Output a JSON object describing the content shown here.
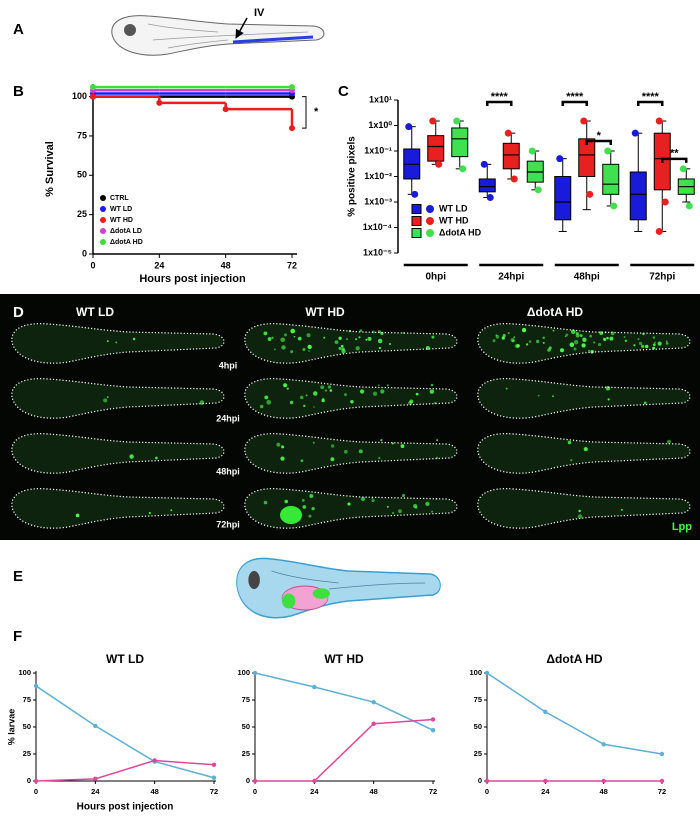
{
  "panel_labels": [
    "A",
    "B",
    "C",
    "D",
    "E",
    "F"
  ],
  "panel_a": {
    "annotation": "IV"
  },
  "imaging": {
    "columns": [
      "WT LD",
      "WT HD",
      "ΔdotA HD"
    ],
    "rows": [
      "4hpi",
      "24hpi",
      "48hpi",
      "72hpi"
    ],
    "channel": "Lpp"
  },
  "chart_data": [
    {
      "type": "step",
      "x": [
        0,
        24,
        48,
        72
      ],
      "xlim": [
        0,
        72
      ],
      "xticks": [
        0,
        24,
        48,
        72
      ],
      "ylim": [
        0,
        108
      ],
      "yticks": [
        0,
        25,
        50,
        75,
        100
      ],
      "xlabel": "Hours post injection",
      "ylabel": "% Survival",
      "legend": "lower left",
      "series": [
        {
          "name": "CTRL",
          "color": "#000000",
          "values": [
            100,
            100,
            100,
            100
          ]
        },
        {
          "name": "WT LD",
          "color": "#1a1aff",
          "values": [
            102,
            102,
            102,
            102
          ]
        },
        {
          "name": "WT HD",
          "color": "#ee1c1c",
          "values": [
            100,
            96,
            92,
            80
          ]
        },
        {
          "name": "ΔdotA LD",
          "color": "#d63ad6",
          "values": [
            104,
            104,
            104,
            104
          ]
        },
        {
          "name": "ΔdotA HD",
          "color": "#3fdc3f",
          "values": [
            106,
            106,
            106,
            106
          ]
        }
      ],
      "significance": [
        {
          "pair": [
            "CTRL",
            "WT HD"
          ],
          "label": "*"
        }
      ]
    },
    {
      "type": "box",
      "categories": [
        "0hpi",
        "24hpi",
        "48hpi",
        "72hpi"
      ],
      "log": true,
      "ylim": [
        1e-05,
        10
      ],
      "yticks": [
        {
          "value": 1e-05,
          "label": "1x10⁻⁵"
        },
        {
          "value": 0.0001,
          "label": "1x10⁻⁴"
        },
        {
          "value": 0.001,
          "label": "1x10⁻³"
        },
        {
          "value": 0.01,
          "label": "1x10⁻²"
        },
        {
          "value": 0.1,
          "label": "1x10⁻¹"
        },
        {
          "value": 1,
          "label": "1x10⁰"
        },
        {
          "value": 10,
          "label": "1x10¹"
        }
      ],
      "ylabel": "% positive pixels",
      "legend": "lower left",
      "series": [
        {
          "name": "WT LD",
          "color": "#1a1adb",
          "boxes": [
            {
              "min": 0.002,
              "q1": 0.008,
              "median": 0.03,
              "q3": 0.12,
              "max": 0.9,
              "points": [
                0.9,
                0.002
              ]
            },
            {
              "min": 0.0015,
              "q1": 0.0025,
              "median": 0.004,
              "q3": 0.008,
              "max": 0.03,
              "points": [
                0.03,
                0.0015
              ]
            },
            {
              "min": 7e-05,
              "q1": 0.0002,
              "median": 0.001,
              "q3": 0.01,
              "max": 0.05,
              "points": [
                0.05
              ]
            },
            {
              "min": 7e-05,
              "q1": 0.0002,
              "median": 0.002,
              "q3": 0.015,
              "max": 0.5,
              "points": [
                0.5
              ]
            }
          ]
        },
        {
          "name": "WT HD",
          "color": "#e8201f",
          "boxes": [
            {
              "min": 0.03,
              "q1": 0.04,
              "median": 0.15,
              "q3": 0.4,
              "max": 1.5,
              "points": [
                1.5,
                0.03
              ]
            },
            {
              "min": 0.008,
              "q1": 0.02,
              "median": 0.07,
              "q3": 0.2,
              "max": 0.5,
              "points": [
                0.5,
                0.008
              ]
            },
            {
              "min": 0.0005,
              "q1": 0.01,
              "median": 0.07,
              "q3": 0.3,
              "max": 1.5,
              "points": [
                1.5,
                0.002
              ]
            },
            {
              "min": 7e-05,
              "q1": 0.003,
              "median": 0.05,
              "q3": 0.5,
              "max": 1.5,
              "points": [
                1.5,
                0.001,
                7e-05
              ]
            }
          ]
        },
        {
          "name": "ΔdotA HD",
          "color": "#40e050",
          "boxes": [
            {
              "min": 0.02,
              "q1": 0.06,
              "median": 0.3,
              "q3": 0.8,
              "max": 1.5,
              "points": [
                1.5,
                0.02
              ]
            },
            {
              "min": 0.003,
              "q1": 0.006,
              "median": 0.015,
              "q3": 0.04,
              "max": 0.1,
              "points": [
                0.1,
                0.003
              ]
            },
            {
              "min": 0.0007,
              "q1": 0.002,
              "median": 0.005,
              "q3": 0.03,
              "max": 0.1,
              "points": [
                0.1,
                0.0007
              ]
            },
            {
              "min": 0.001,
              "q1": 0.002,
              "median": 0.004,
              "q3": 0.008,
              "max": 0.02,
              "points": [
                0.02,
                0.0007
              ]
            }
          ]
        }
      ],
      "significance": [
        {
          "category": "24hpi",
          "pair": [
            "WT LD",
            "WT HD"
          ],
          "label": "****"
        },
        {
          "category": "48hpi",
          "pair": [
            "WT LD",
            "WT HD"
          ],
          "label": "****"
        },
        {
          "category": "48hpi",
          "pair": [
            "WT HD",
            "ΔdotA HD"
          ],
          "label": "*"
        },
        {
          "category": "72hpi",
          "pair": [
            "WT LD",
            "WT HD"
          ],
          "label": "****"
        },
        {
          "category": "72hpi",
          "pair": [
            "WT HD",
            "ΔdotA HD"
          ],
          "label": "**"
        }
      ]
    },
    {
      "type": "line",
      "title": "WT LD",
      "x": [
        0,
        24,
        48,
        72
      ],
      "xlim": [
        0,
        72
      ],
      "xticks": [
        0,
        24,
        48,
        72
      ],
      "ylim": [
        0,
        100
      ],
      "yticks": [
        0,
        25,
        50,
        75,
        100
      ],
      "ylabel": "% larvae",
      "xlabel": "Hours post injection",
      "series": [
        {
          "color": "#5bb0d5",
          "values": [
            88,
            51,
            18,
            3
          ]
        },
        {
          "color": "#e0479b",
          "values": [
            0,
            2,
            19,
            15
          ]
        }
      ]
    },
    {
      "type": "line",
      "title": "WT HD",
      "x": [
        0,
        24,
        48,
        72
      ],
      "xlim": [
        0,
        72
      ],
      "xticks": [
        0,
        24,
        48,
        72
      ],
      "ylim": [
        0,
        100
      ],
      "yticks": [
        0,
        25,
        50,
        75,
        100
      ],
      "series": [
        {
          "color": "#5bb0d5",
          "values": [
            100,
            87,
            73,
            47
          ]
        },
        {
          "color": "#e0479b",
          "values": [
            0,
            0,
            53,
            57
          ]
        }
      ]
    },
    {
      "type": "line",
      "title": "ΔdotA HD",
      "x": [
        0,
        24,
        48,
        72
      ],
      "xlim": [
        0,
        72
      ],
      "xticks": [
        0,
        24,
        48,
        72
      ],
      "ylim": [
        0,
        100
      ],
      "yticks": [
        0,
        25,
        50,
        75,
        100
      ],
      "series": [
        {
          "color": "#5bb0d5",
          "values": [
            100,
            64,
            34,
            25
          ]
        },
        {
          "color": "#e0479b",
          "values": [
            0,
            0,
            0,
            0
          ]
        }
      ]
    }
  ]
}
